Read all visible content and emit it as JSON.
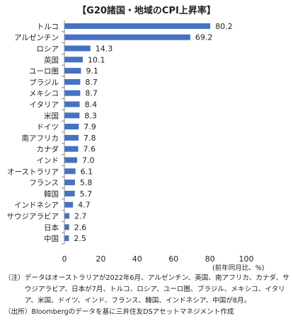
{
  "chart_data": {
    "type": "bar",
    "orientation": "horizontal",
    "title": "【G20諸国・地域のCPI上昇率】",
    "categories": [
      "トルコ",
      "アルゼンチン",
      "ロシア",
      "英国",
      "ユーロ圏",
      "ブラジル",
      "メキシコ",
      "イタリア",
      "米国",
      "ドイツ",
      "南アフリカ",
      "カナダ",
      "インド",
      "オーストラリア",
      "フランス",
      "韓国",
      "インドネシア",
      "サウジアラビア",
      "日本",
      "中国"
    ],
    "values": [
      80.2,
      69.2,
      14.3,
      10.1,
      9.1,
      8.7,
      8.7,
      8.4,
      8.3,
      7.9,
      7.8,
      7.6,
      7.0,
      6.1,
      5.8,
      5.7,
      4.7,
      2.7,
      2.6,
      2.5
    ],
    "value_labels": [
      "80.2",
      "69.2",
      "14.3",
      "10.1",
      "9.1",
      "8.7",
      "8.7",
      "8.4",
      "8.3",
      "7.9",
      "7.8",
      "7.6",
      "7.0",
      "6.1",
      "5.8",
      "5.7",
      "4.7",
      "2.7",
      "2.6",
      "2.5"
    ],
    "xlim": [
      0,
      100
    ],
    "xticks": [
      "0",
      "20",
      "40",
      "60",
      "80",
      "100"
    ],
    "xlabel": "(前年同月比、%)",
    "grid": false,
    "bar_color": "#4472c4"
  },
  "notes": {
    "note_label": "（注）",
    "note_text": "データはオーストラリアが2022年6月、アルゼンチン、英国、南アフリカ、カナダ、サウジアラビア、日本が7月、トルコ、ロシア、ユーロ圏、ブラジル、メキシコ、イタリア、米国、ドイツ、インド、フランス、韓国、インドネシア、中国が8月。",
    "source_label": "（出所）",
    "source_text": "Bloombergのデータを基に三井住友DSアセットマネジメント作成"
  }
}
